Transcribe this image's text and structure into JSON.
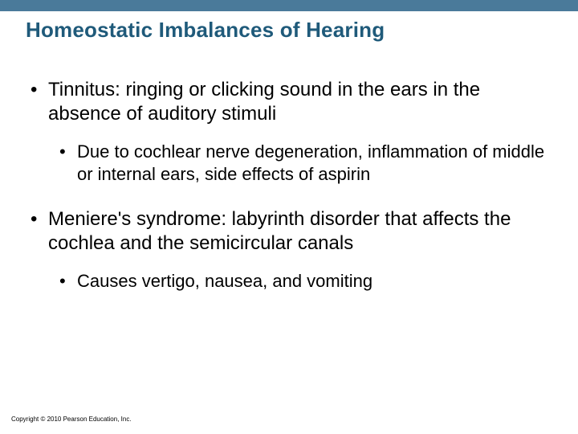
{
  "colors": {
    "top_bar": "#4a7a9a",
    "title_text": "#1f5a7a",
    "body_text": "#000000",
    "background": "#ffffff"
  },
  "typography": {
    "title_fontsize": 26,
    "title_weight": "bold",
    "level1_fontsize": 24,
    "level2_fontsize": 22,
    "copyright_fontsize": 8,
    "font_family": "Arial"
  },
  "title": "Homeostatic Imbalances of Hearing",
  "bullets": {
    "b1": "Tinnitus: ringing or clicking sound in the ears in the absence of auditory stimuli",
    "b1_sub": "Due to cochlear nerve degeneration, inflammation of middle or internal ears, side effects of aspirin",
    "b2": "Meniere's syndrome: labyrinth disorder that affects the cochlea and the semicircular canals",
    "b2_sub": "Causes vertigo, nausea, and vomiting"
  },
  "bullet_glyph": "•",
  "copyright": "Copyright © 2010 Pearson Education, Inc."
}
